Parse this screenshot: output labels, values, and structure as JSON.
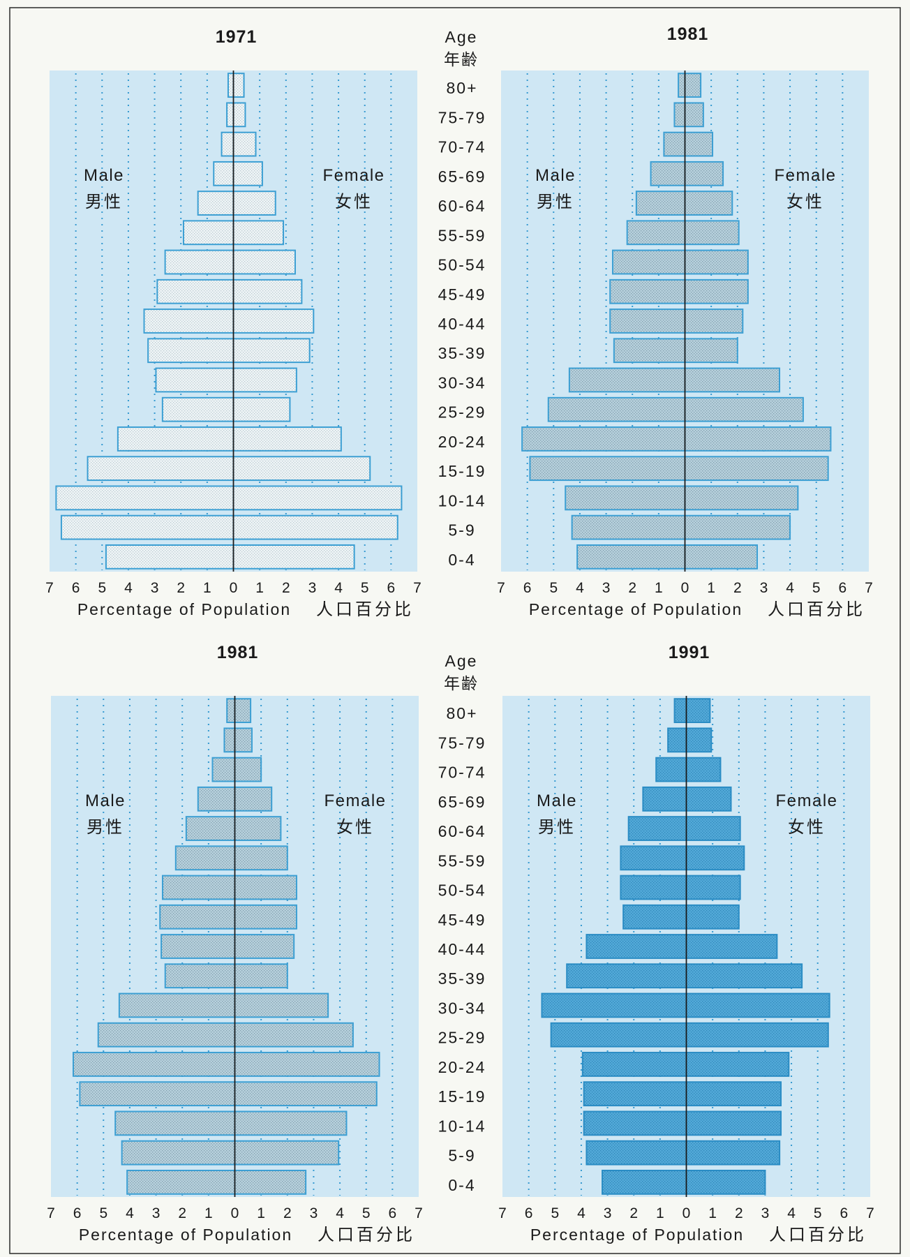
{
  "colors": {
    "page_bg": "#f7f8f3",
    "frame": "#2a2a2a",
    "plot_bg": "#cfe7f4",
    "grid": "#3499d0",
    "zero_line": "#1c1c1c"
  },
  "age_header": {
    "en": "Age",
    "zh": "年齢"
  },
  "chart_data": [
    {
      "type": "bar",
      "orientation": "horizontal",
      "title": "1971",
      "categories": [
        "80+",
        "75-79",
        "70-74",
        "65-69",
        "60-64",
        "55-59",
        "50-54",
        "45-49",
        "40-44",
        "35-39",
        "30-34",
        "25-29",
        "20-24",
        "15-19",
        "10-14",
        "5-9",
        "0-4"
      ],
      "series": [
        {
          "name": "Male",
          "name_zh": "男性",
          "values": [
            0.2,
            0.25,
            0.45,
            0.75,
            1.35,
            1.9,
            2.6,
            2.9,
            3.4,
            3.25,
            2.95,
            2.7,
            4.4,
            5.55,
            6.75,
            6.55,
            4.85
          ]
        },
        {
          "name": "Female",
          "name_zh": "女性",
          "values": [
            0.4,
            0.45,
            0.85,
            1.1,
            1.6,
            1.9,
            2.35,
            2.6,
            3.05,
            2.9,
            2.4,
            2.15,
            4.1,
            5.2,
            6.4,
            6.25,
            4.6
          ]
        }
      ],
      "xlabel": "Percentage of Population",
      "xlabel_zh": "人口百分比",
      "xtick_labels": [
        "7",
        "6",
        "5",
        "4",
        "3",
        "2",
        "1",
        "0",
        "1",
        "2",
        "3",
        "4",
        "5",
        "6",
        "7"
      ],
      "xlim": [
        -7,
        7
      ],
      "grid": true,
      "bar_color": "#eef4f6",
      "bar_dot_color": "#b9c9d0",
      "bar_border": "#3c9fd3"
    },
    {
      "type": "bar",
      "orientation": "horizontal",
      "title": "1981",
      "categories": [
        "80+",
        "75-79",
        "70-74",
        "65-69",
        "60-64",
        "55-59",
        "50-54",
        "45-49",
        "40-44",
        "35-39",
        "30-34",
        "25-29",
        "20-24",
        "15-19",
        "10-14",
        "5-9",
        "0-4"
      ],
      "series": [
        {
          "name": "Male",
          "name_zh": "男性",
          "values": [
            0.25,
            0.4,
            0.8,
            1.3,
            1.85,
            2.2,
            2.75,
            2.85,
            2.85,
            2.7,
            4.4,
            5.2,
            6.2,
            5.9,
            4.55,
            4.3,
            4.1
          ]
        },
        {
          "name": "Female",
          "name_zh": "女性",
          "values": [
            0.6,
            0.7,
            1.05,
            1.45,
            1.8,
            2.05,
            2.4,
            2.4,
            2.2,
            2.0,
            3.6,
            4.5,
            5.55,
            5.45,
            4.3,
            4.0,
            2.75
          ]
        }
      ],
      "xlabel": "Percentage of Population",
      "xlabel_zh": "人口百分比",
      "xtick_labels": [
        "7",
        "6",
        "5",
        "4",
        "3",
        "2",
        "1",
        "0",
        "1",
        "2",
        "3",
        "4",
        "5",
        "6",
        "7"
      ],
      "xlim": [
        -7,
        7
      ],
      "grid": true,
      "bar_color": "#b6d0dc",
      "bar_dot_color": "#7f9dab",
      "bar_border": "#3c9fd3"
    },
    {
      "type": "bar",
      "orientation": "horizontal",
      "title": "1981",
      "categories": [
        "80+",
        "75-79",
        "70-74",
        "65-69",
        "60-64",
        "55-59",
        "50-54",
        "45-49",
        "40-44",
        "35-39",
        "30-34",
        "25-29",
        "20-24",
        "15-19",
        "10-14",
        "5-9",
        "0-4"
      ],
      "series": [
        {
          "name": "Male",
          "name_zh": "男性",
          "values": [
            0.3,
            0.4,
            0.85,
            1.4,
            1.85,
            2.25,
            2.75,
            2.85,
            2.8,
            2.65,
            4.4,
            5.2,
            6.15,
            5.9,
            4.55,
            4.3,
            4.1
          ]
        },
        {
          "name": "Female",
          "name_zh": "女性",
          "values": [
            0.6,
            0.65,
            1.0,
            1.4,
            1.75,
            2.0,
            2.35,
            2.35,
            2.25,
            2.0,
            3.55,
            4.5,
            5.5,
            5.4,
            4.25,
            3.95,
            2.7
          ]
        }
      ],
      "xlabel": "Percentage of Population",
      "xlabel_zh": "人口百分比",
      "xtick_labels": [
        "7",
        "6",
        "5",
        "4",
        "3",
        "2",
        "1",
        "0",
        "1",
        "2",
        "3",
        "4",
        "5",
        "6",
        "7"
      ],
      "xlim": [
        -7,
        7
      ],
      "grid": true,
      "bar_color": "#b6d0dc",
      "bar_dot_color": "#7f9dab",
      "bar_border": "#3c9fd3"
    },
    {
      "type": "bar",
      "orientation": "horizontal",
      "title": "1991",
      "categories": [
        "80+",
        "75-79",
        "70-74",
        "65-69",
        "60-64",
        "55-59",
        "50-54",
        "45-49",
        "40-44",
        "35-39",
        "30-34",
        "25-29",
        "20-24",
        "15-19",
        "10-14",
        "5-9",
        "0-4"
      ],
      "series": [
        {
          "name": "Male",
          "name_zh": "男性",
          "values": [
            0.45,
            0.7,
            1.15,
            1.65,
            2.2,
            2.5,
            2.5,
            2.4,
            3.8,
            4.55,
            5.5,
            5.15,
            3.95,
            3.9,
            3.9,
            3.8,
            3.2
          ]
        },
        {
          "name": "Female",
          "name_zh": "女性",
          "values": [
            0.9,
            0.95,
            1.3,
            1.7,
            2.05,
            2.2,
            2.05,
            2.0,
            3.45,
            4.4,
            5.45,
            5.4,
            3.9,
            3.6,
            3.6,
            3.55,
            3.0
          ]
        }
      ],
      "xlabel": "Percentage of Population",
      "xlabel_zh": "人口百分比",
      "xtick_labels": [
        "7",
        "6",
        "5",
        "4",
        "3",
        "2",
        "1",
        "0",
        "1",
        "2",
        "3",
        "4",
        "5",
        "6",
        "7"
      ],
      "xlim": [
        -7,
        7
      ],
      "grid": true,
      "bar_color": "#52a9d8",
      "bar_dot_color": "#2f86b8",
      "bar_border": "#2a8cc4"
    }
  ]
}
